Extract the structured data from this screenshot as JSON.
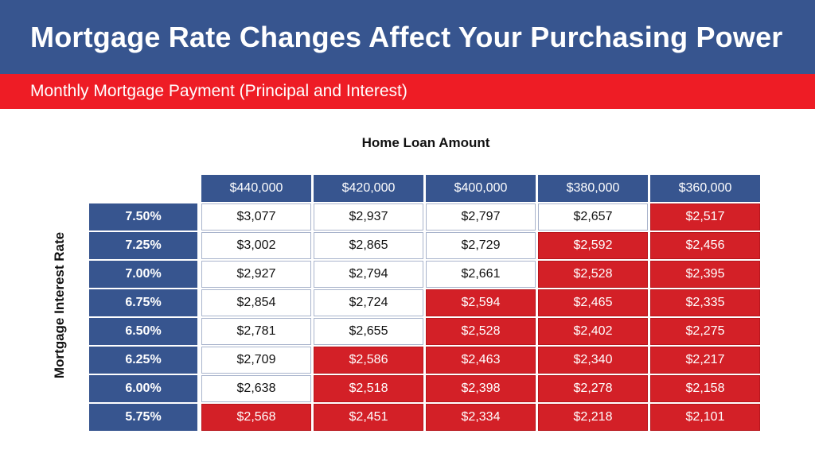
{
  "title": "Mortgage Rate Changes Affect Your Purchasing Power",
  "subtitle": "Monthly Mortgage Payment (Principal and Interest)",
  "column_axis_title": "Home Loan Amount",
  "row_axis_title": "Mortgage Interest Rate",
  "colors": {
    "header_blue": "#37558f",
    "subtitle_red": "#ee1c25",
    "cell_red": "#d32027",
    "cell_white": "#ffffff"
  },
  "table": {
    "columns": [
      "$440,000",
      "$420,000",
      "$400,000",
      "$380,000",
      "$360,000"
    ],
    "rows": [
      {
        "rate": "7.50%",
        "values": [
          "$3,077",
          "$2,937",
          "$2,797",
          "$2,657",
          "$2,517"
        ],
        "red": [
          false,
          false,
          false,
          false,
          true
        ]
      },
      {
        "rate": "7.25%",
        "values": [
          "$3,002",
          "$2,865",
          "$2,729",
          "$2,592",
          "$2,456"
        ],
        "red": [
          false,
          false,
          false,
          true,
          true
        ]
      },
      {
        "rate": "7.00%",
        "values": [
          "$2,927",
          "$2,794",
          "$2,661",
          "$2,528",
          "$2,395"
        ],
        "red": [
          false,
          false,
          false,
          true,
          true
        ]
      },
      {
        "rate": "6.75%",
        "values": [
          "$2,854",
          "$2,724",
          "$2,594",
          "$2,465",
          "$2,335"
        ],
        "red": [
          false,
          false,
          true,
          true,
          true
        ]
      },
      {
        "rate": "6.50%",
        "values": [
          "$2,781",
          "$2,655",
          "$2,528",
          "$2,402",
          "$2,275"
        ],
        "red": [
          false,
          false,
          true,
          true,
          true
        ]
      },
      {
        "rate": "6.25%",
        "values": [
          "$2,709",
          "$2,586",
          "$2,463",
          "$2,340",
          "$2,217"
        ],
        "red": [
          false,
          true,
          true,
          true,
          true
        ]
      },
      {
        "rate": "6.00%",
        "values": [
          "$2,638",
          "$2,518",
          "$2,398",
          "$2,278",
          "$2,158"
        ],
        "red": [
          false,
          true,
          true,
          true,
          true
        ]
      },
      {
        "rate": "5.75%",
        "values": [
          "$2,568",
          "$2,451",
          "$2,334",
          "$2,218",
          "$2,101"
        ],
        "red": [
          true,
          true,
          true,
          true,
          true
        ]
      }
    ]
  }
}
